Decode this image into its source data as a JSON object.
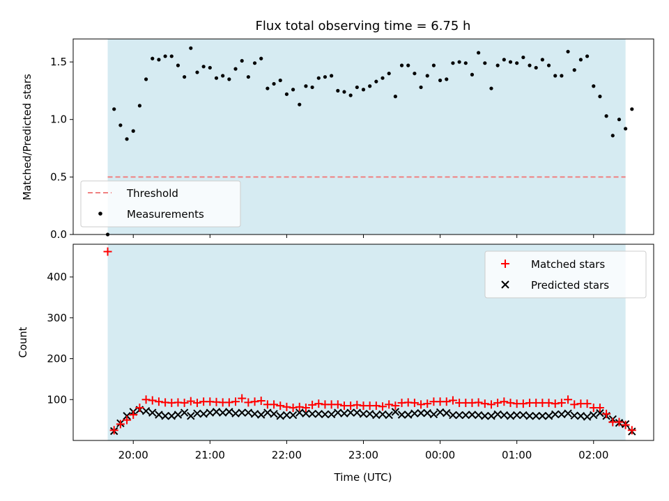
{
  "chart_data": [
    {
      "type": "scatter",
      "title": "Flux total observing time = 6.75 h",
      "ylabel": "Matched/Predicted stars",
      "xlabel": "",
      "ylim": [
        0,
        1.7
      ],
      "yticks": [
        0.0,
        0.5,
        1.0,
        1.5
      ],
      "ytick_labels": [
        "0.0",
        "0.5",
        "1.0",
        "1.5"
      ],
      "x_start": "19:40",
      "x_step_minutes": 5,
      "observing_window": [
        "19:40",
        "02:25"
      ],
      "threshold": {
        "name": "Threshold",
        "value": 0.5,
        "color": "#f08080"
      },
      "measurements_name": "Measurements",
      "measurements": [
        0.0,
        1.09,
        0.95,
        0.83,
        0.9,
        1.12,
        1.35,
        1.53,
        1.52,
        1.55,
        1.55,
        1.47,
        1.37,
        1.62,
        1.41,
        1.46,
        1.45,
        1.36,
        1.38,
        1.35,
        1.44,
        1.51,
        1.37,
        1.49,
        1.53,
        1.27,
        1.31,
        1.34,
        1.22,
        1.26,
        1.13,
        1.29,
        1.28,
        1.36,
        1.37,
        1.38,
        1.25,
        1.24,
        1.21,
        1.28,
        1.26,
        1.29,
        1.33,
        1.36,
        1.4,
        1.2,
        1.47,
        1.47,
        1.4,
        1.28,
        1.38,
        1.47,
        1.34,
        1.35,
        1.49,
        1.5,
        1.49,
        1.39,
        1.58,
        1.49,
        1.27,
        1.47,
        1.52,
        1.5,
        1.49,
        1.54,
        1.47,
        1.45,
        1.52,
        1.47,
        1.38,
        1.38,
        1.59,
        1.43,
        1.52,
        1.55,
        1.29,
        1.2,
        1.03,
        0.86,
        1.0,
        0.92,
        1.09
      ],
      "legend_position": "lower-left"
    },
    {
      "type": "scatter",
      "ylabel": "Count",
      "xlabel": "Time (UTC)",
      "ylim": [
        0,
        480
      ],
      "yticks": [
        100,
        200,
        300,
        400
      ],
      "ytick_labels": [
        "100",
        "200",
        "300",
        "400"
      ],
      "xtick_labels": [
        "20:00",
        "21:00",
        "22:00",
        "23:00",
        "00:00",
        "01:00",
        "02:00"
      ],
      "x_start": "19:40",
      "x_step_minutes": 5,
      "series": [
        {
          "name": "Matched stars",
          "color": "#ff0000",
          "marker": "+",
          "values": [
            462,
            25,
            40,
            50,
            63,
            80,
            100,
            98,
            95,
            93,
            92,
            93,
            92,
            96,
            92,
            95,
            95,
            94,
            93,
            93,
            95,
            103,
            93,
            95,
            97,
            88,
            88,
            85,
            82,
            80,
            82,
            80,
            87,
            90,
            88,
            88,
            88,
            85,
            85,
            87,
            85,
            85,
            85,
            83,
            88,
            85,
            92,
            93,
            92,
            88,
            90,
            95,
            95,
            95,
            98,
            92,
            92,
            92,
            93,
            90,
            88,
            92,
            95,
            92,
            90,
            90,
            92,
            92,
            92,
            92,
            90,
            92,
            100,
            88,
            90,
            90,
            80,
            80,
            65,
            45,
            45,
            38,
            25
          ]
        },
        {
          "name": "Predicted stars",
          "color": "#000000",
          "marker": "x",
          "values": [
            null,
            23,
            42,
            60,
            70,
            75,
            72,
            68,
            63,
            60,
            60,
            63,
            68,
            60,
            66,
            65,
            68,
            70,
            68,
            70,
            66,
            68,
            68,
            65,
            63,
            68,
            65,
            60,
            62,
            62,
            68,
            66,
            65,
            65,
            64,
            64,
            68,
            66,
            68,
            68,
            65,
            65,
            62,
            64,
            62,
            70,
            63,
            63,
            66,
            67,
            67,
            64,
            69,
            67,
            62,
            62,
            62,
            63,
            62,
            60,
            60,
            64,
            62,
            60,
            62,
            62,
            60,
            60,
            60,
            60,
            64,
            64,
            66,
            61,
            60,
            58,
            62,
            67,
            60,
            52,
            43,
            40,
            22
          ]
        }
      ],
      "legend_position": "upper-right"
    }
  ]
}
